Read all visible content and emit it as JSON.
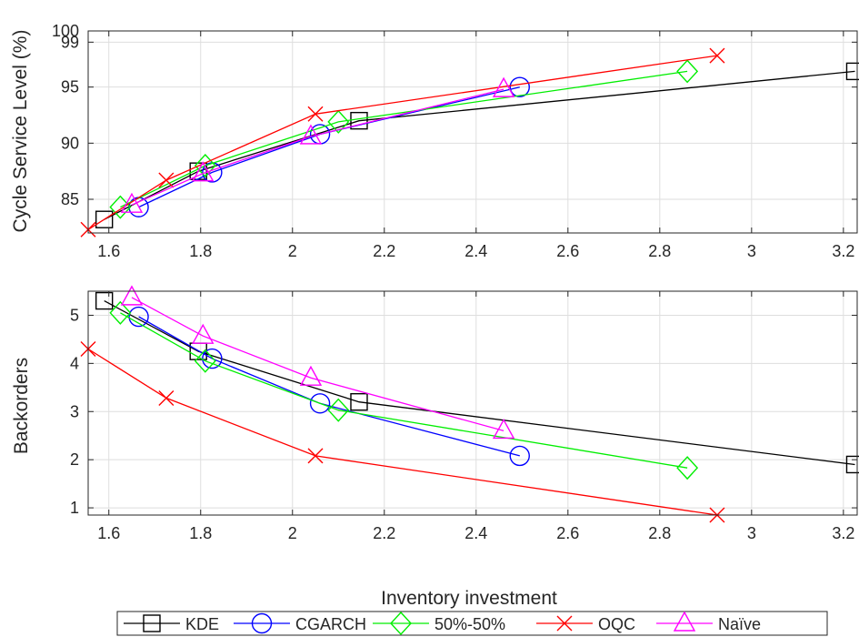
{
  "chart_data": [
    {
      "type": "line",
      "title": "",
      "xlabel": "",
      "ylabel": "Cycle Service Level (%)",
      "xlim": [
        1.555,
        3.23
      ],
      "ylim": [
        82,
        100
      ],
      "xticks": [
        "1.6",
        "1.8",
        "2",
        "2.2",
        "2.4",
        "2.6",
        "2.8",
        "3",
        "3.2"
      ],
      "yticks": [
        "85",
        "90",
        "95",
        "99",
        "100"
      ],
      "grid": true,
      "series": [
        {
          "name": "KDE",
          "marker": "square",
          "color": "#000000",
          "x": [
            1.59,
            1.795,
            2.145,
            3.225
          ],
          "y": [
            83.2,
            87.5,
            92.0,
            96.4
          ]
        },
        {
          "name": "CGARCH",
          "marker": "circle",
          "color": "#0000ff",
          "x": [
            1.665,
            1.825,
            2.06,
            2.495
          ],
          "y": [
            84.3,
            87.4,
            90.8,
            95.0
          ]
        },
        {
          "name": "50%-50%",
          "marker": "diamond",
          "color": "#00ee00",
          "x": [
            1.625,
            1.81,
            2.1,
            2.86
          ],
          "y": [
            84.3,
            88.0,
            91.9,
            96.4
          ]
        },
        {
          "name": "OQC",
          "marker": "x",
          "color": "#ff0000",
          "x": [
            1.555,
            1.725,
            2.05,
            2.925
          ],
          "y": [
            82.3,
            86.7,
            92.6,
            97.8
          ]
        },
        {
          "name": "Naïve",
          "marker": "triangle",
          "color": "#ff00ff",
          "x": [
            1.65,
            1.805,
            2.04,
            2.46
          ],
          "y": [
            84.5,
            87.3,
            90.6,
            94.8
          ]
        }
      ]
    },
    {
      "type": "line",
      "title": "",
      "xlabel": "Inventory investment",
      "ylabel": "Backorders",
      "xlim": [
        1.555,
        3.23
      ],
      "ylim": [
        0.85,
        5.5
      ],
      "xticks": [
        "1.6",
        "1.8",
        "2",
        "2.2",
        "2.4",
        "2.6",
        "2.8",
        "3",
        "3.2"
      ],
      "yticks": [
        "1",
        "2",
        "3",
        "4",
        "5"
      ],
      "grid": true,
      "series": [
        {
          "name": "KDE",
          "marker": "square",
          "color": "#000000",
          "x": [
            1.59,
            1.795,
            2.145,
            3.225
          ],
          "y": [
            5.3,
            4.25,
            3.2,
            1.9
          ]
        },
        {
          "name": "CGARCH",
          "marker": "circle",
          "color": "#0000ff",
          "x": [
            1.665,
            1.825,
            2.06,
            2.495
          ],
          "y": [
            4.97,
            4.1,
            3.17,
            2.08
          ]
        },
        {
          "name": "50%-50%",
          "marker": "diamond",
          "color": "#00ee00",
          "x": [
            1.625,
            1.81,
            2.1,
            2.86
          ],
          "y": [
            5.05,
            4.05,
            3.03,
            1.83
          ]
        },
        {
          "name": "OQC",
          "marker": "x",
          "color": "#ff0000",
          "x": [
            1.555,
            1.725,
            2.05,
            2.925
          ],
          "y": [
            4.3,
            3.28,
            2.08,
            0.85
          ]
        },
        {
          "name": "Naïve",
          "marker": "triangle",
          "color": "#ff00ff",
          "x": [
            1.65,
            1.805,
            2.04,
            2.46
          ],
          "y": [
            5.37,
            4.57,
            3.7,
            2.6
          ]
        }
      ]
    }
  ],
  "legend": {
    "placement": "bottom-center",
    "entries": [
      "KDE",
      "CGARCH",
      "50%-50%",
      "OQC",
      "Naïve"
    ]
  }
}
